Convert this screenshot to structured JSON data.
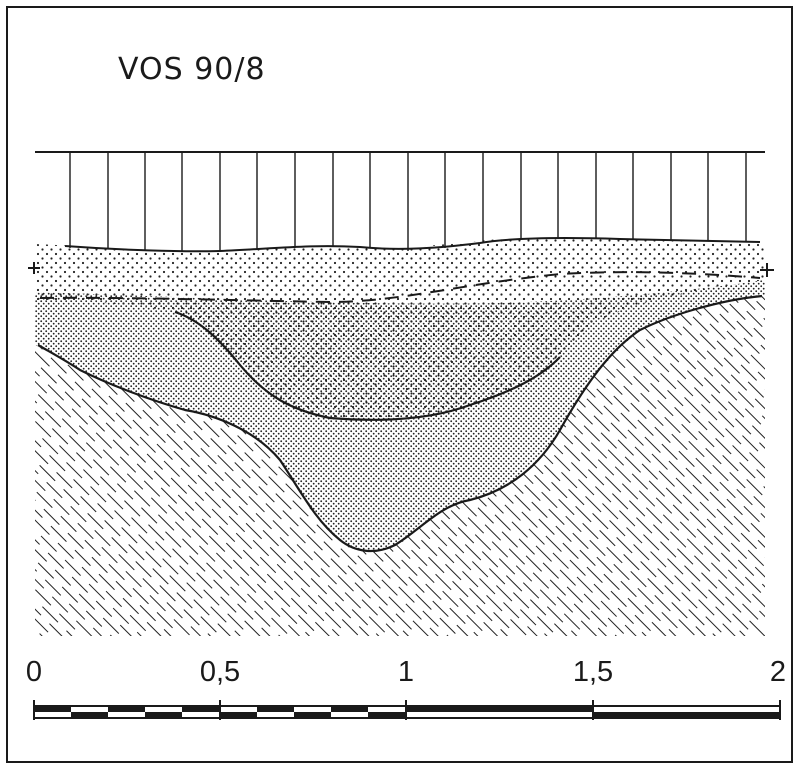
{
  "title": "VOS 90/8",
  "scale": {
    "ticks": [
      "0",
      "0,5",
      "1",
      "1,5",
      "2"
    ]
  }
}
